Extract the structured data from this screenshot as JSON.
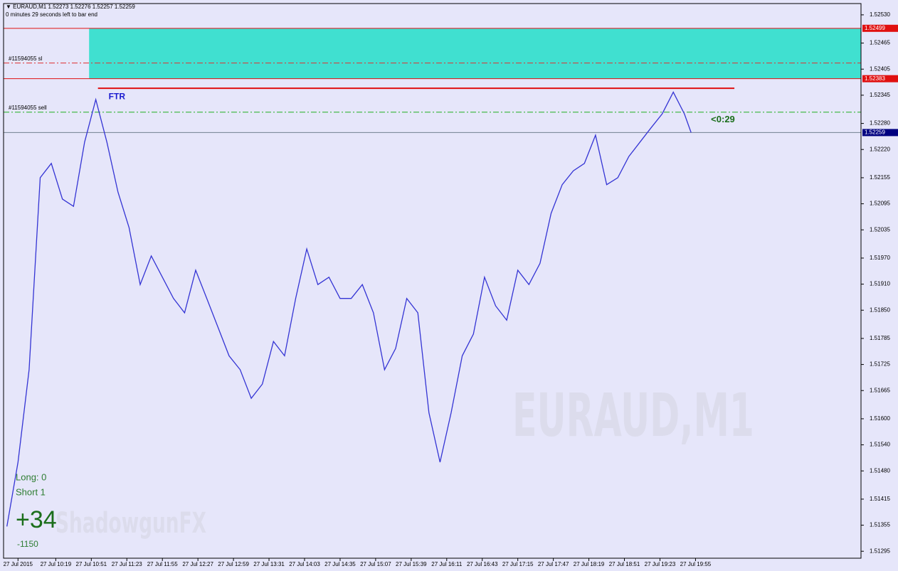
{
  "chart_data": {
    "type": "line",
    "header": "▼ EURAUD,M1  1.52273 1.52276 1.52257 1.52259",
    "subheader": "0 minutes 29 seconds left to bar end",
    "watermark": "EURAUD,M1",
    "brand": "ShadowgunFX",
    "stats": {
      "long": "Long:  0",
      "short": "Short  1",
      "profit": "+34",
      "points": "-1150"
    },
    "series": [
      {
        "name": "EURAUD,M1",
        "color": "#3434d4",
        "x": [
          575,
          585,
          595,
          605,
          615,
          625,
          635,
          645,
          655,
          665,
          675,
          685,
          695,
          705,
          715,
          725,
          735,
          745,
          755,
          765,
          775,
          785,
          795,
          805,
          815,
          825,
          835,
          845,
          855,
          865,
          875,
          885,
          895,
          905,
          915,
          925,
          935,
          945,
          955,
          965,
          975,
          985,
          995,
          1005,
          1015,
          1025,
          1035,
          1045,
          1055,
          1065,
          1075,
          1085,
          1095,
          1105,
          1115,
          1125,
          1135,
          1145,
          1155,
          1165,
          1175,
          1185,
          1191
        ],
        "values": [
          1.51352,
          1.515,
          1.51713,
          1.52155,
          1.52188,
          1.52106,
          1.52089,
          1.52237,
          1.52335,
          1.52237,
          1.52122,
          1.5204,
          1.51909,
          1.51975,
          1.51926,
          1.51877,
          1.51844,
          1.51942,
          1.51877,
          1.51811,
          1.51745,
          1.51713,
          1.51647,
          1.5168,
          1.51778,
          1.51745,
          1.51877,
          1.51991,
          1.51909,
          1.51926,
          1.51877,
          1.51877,
          1.51909,
          1.51844,
          1.51713,
          1.51762,
          1.51877,
          1.51844,
          1.51614,
          1.515,
          1.51614,
          1.51745,
          1.51795,
          1.51926,
          1.5186,
          1.51827,
          1.51942,
          1.51909,
          1.51958,
          1.52073,
          1.52139,
          1.52171,
          1.52188,
          1.52253,
          1.52139,
          1.52155,
          1.52204,
          1.52237,
          1.5227,
          1.52302,
          1.52352,
          1.52302,
          1.52259
        ]
      }
    ],
    "zone": {
      "from": 1.52383,
      "to": 1.52499,
      "start": 649,
      "color": "#40e0d0"
    },
    "ftr": {
      "label": "FTR",
      "value": 1.52361,
      "start": 657,
      "end": 1230,
      "color": "#e01010"
    },
    "levels": [
      {
        "name": "#11594055 sl",
        "value": 1.52419,
        "color": "#e03030"
      },
      {
        "name": "#11594055 sell",
        "value": 1.52306,
        "color": "#20b020"
      }
    ],
    "timer": "<0:29",
    "price_labels": [
      {
        "value": 1.52499,
        "color": "#e01010"
      },
      {
        "value": 1.52383,
        "color": "#e01010"
      },
      {
        "value": 1.52259,
        "color": "#000080"
      }
    ],
    "xlim": [
      572,
      1344
    ],
    "xticks": [
      {
        "value": 585,
        "label": "27 Jul 2015"
      },
      {
        "value": 619,
        "label": "27 Jul 10:19"
      },
      {
        "value": 651,
        "label": "27 Jul 10:51"
      },
      {
        "value": 683,
        "label": "27 Jul 11:23"
      },
      {
        "value": 715,
        "label": "27 Jul 11:55"
      },
      {
        "value": 747,
        "label": "27 Jul 12:27"
      },
      {
        "value": 779,
        "label": "27 Jul 12:59"
      },
      {
        "value": 811,
        "label": "27 Jul 13:31"
      },
      {
        "value": 843,
        "label": "27 Jul 14:03"
      },
      {
        "value": 875,
        "label": "27 Jul 14:35"
      },
      {
        "value": 907,
        "label": "27 Jul 15:07"
      },
      {
        "value": 939,
        "label": "27 Jul 15:39"
      },
      {
        "value": 971,
        "label": "27 Jul 16:11"
      },
      {
        "value": 1003,
        "label": "27 Jul 16:43"
      },
      {
        "value": 1035,
        "label": "27 Jul 17:15"
      },
      {
        "value": 1067,
        "label": "27 Jul 17:47"
      },
      {
        "value": 1099,
        "label": "27 Jul 18:19"
      },
      {
        "value": 1131,
        "label": "27 Jul 18:51"
      },
      {
        "value": 1163,
        "label": "27 Jul 19:23"
      },
      {
        "value": 1195,
        "label": "27 Jul 19:55"
      }
    ],
    "ylim": [
      1.51279,
      1.52556
    ],
    "yticks": [
      {
        "value": 1.5253,
        "label": "1.52530"
      },
      1.52465,
      1.52405,
      1.52345,
      {
        "value": 1.5228,
        "label": "1.52280"
      },
      {
        "value": 1.5222,
        "label": "1.52220"
      },
      1.52155,
      1.52095,
      1.52035,
      {
        "value": 1.5197,
        "label": "1.51970"
      },
      {
        "value": 1.5191,
        "label": "1.51910"
      },
      {
        "value": 1.5185,
        "label": "1.51850"
      },
      1.51785,
      1.51725,
      1.51665,
      {
        "value": 1.516,
        "label": "1.51600"
      },
      {
        "value": 1.5154,
        "label": "1.51540"
      },
      {
        "value": 1.5148,
        "label": "1.51480"
      },
      1.51415,
      1.51355,
      1.51295
    ]
  }
}
